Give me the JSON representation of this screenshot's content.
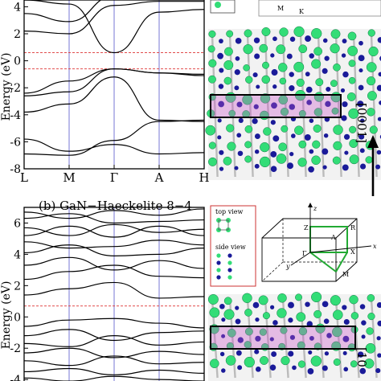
{
  "panel_b_caption": "(b) GaN−Haeckelite 8−4",
  "axis_label_energy": "Energy (eV)",
  "kpoints": [
    "L",
    "M",
    "Γ",
    "A",
    "H"
  ],
  "axis_ticks_top": [
    "4",
    "2",
    "0",
    "-2",
    "-4",
    "-6",
    "-8"
  ],
  "axis_ticks_bottom": [
    "6",
    "4",
    "2",
    "0",
    "-2",
    "-4"
  ],
  "direction_label": "[0001]",
  "direction_label_bottom": "[10",
  "top_view_label": "top view",
  "side_view_label": "side view",
  "bz_labels": [
    "Z",
    "R",
    "A",
    "X",
    "Γ",
    "y",
    "M",
    "x",
    "z"
  ],
  "bz_top_labels": [
    "M",
    "K"
  ],
  "colors": {
    "band_line": "#000000",
    "kpath_line": "#5555cc",
    "fermi_dashed": "#dd3333",
    "ga_atom": "#33dd77",
    "n_atom": "#1a1a99",
    "highlight_slab": "#cc55cc",
    "bz_highlight": "#22aa33"
  },
  "chart_data": [
    {
      "type": "line",
      "title": "",
      "xlabel": "",
      "ylabel": "Energy (eV)",
      "x_ticks": [
        "L",
        "M",
        "Γ",
        "A",
        "H"
      ],
      "ylim": [
        -8,
        4.5
      ],
      "reference_lines": [
        0.6,
        -0.6
      ],
      "series": [
        {
          "x": [
            0,
            1,
            2,
            3,
            4
          ],
          "values": [
            4.5,
            4.2,
            0.6,
            3.6,
            3.8
          ]
        },
        {
          "x": [
            0,
            1,
            2,
            3,
            4
          ],
          "values": [
            3.5,
            2.9,
            4.8,
            4.8,
            4.6
          ]
        },
        {
          "x": [
            0,
            1,
            2,
            3,
            4
          ],
          "values": [
            2.2,
            2.0,
            4.1,
            4.4,
            4.4
          ]
        },
        {
          "x": [
            0,
            1,
            2,
            3,
            4
          ],
          "values": [
            -2.4,
            -1.5,
            -0.6,
            -0.9,
            -1.0
          ]
        },
        {
          "x": [
            0,
            1,
            2,
            3,
            4
          ],
          "values": [
            -2.6,
            -2.3,
            -0.6,
            -0.9,
            -1.1
          ]
        },
        {
          "x": [
            0,
            1,
            2,
            3,
            4
          ],
          "values": [
            -3.8,
            -3.2,
            -1.2,
            -4.4,
            -4.5
          ]
        },
        {
          "x": [
            0,
            1,
            2,
            3,
            4
          ],
          "values": [
            -5.8,
            -6.7,
            -6.2,
            -6.9,
            -6.8
          ]
        },
        {
          "x": [
            0,
            1,
            2,
            3,
            4
          ],
          "values": [
            -6.9,
            -7.0,
            -5.9,
            -4.5,
            -4.4
          ]
        }
      ]
    },
    {
      "type": "line",
      "title": "",
      "xlabel": "",
      "ylabel": "Energy (eV)",
      "ylim": [
        -4.3,
        7
      ],
      "reference_lines": [
        0.7
      ],
      "series": [
        {
          "x": [
            0,
            1,
            2,
            3,
            4
          ],
          "values": [
            6.7,
            6.3,
            6.8,
            6.5,
            6.9
          ]
        },
        {
          "x": [
            0,
            1,
            2,
            3,
            4
          ],
          "values": [
            6.3,
            6.6,
            6.0,
            6.1,
            6.2
          ]
        },
        {
          "x": [
            0,
            1,
            2,
            3,
            4
          ],
          "values": [
            5.7,
            5.2,
            5.9,
            5.4,
            5.6
          ]
        },
        {
          "x": [
            0,
            1,
            2,
            3,
            4
          ],
          "values": [
            5.2,
            5.8,
            5.1,
            5.8,
            5.2
          ]
        },
        {
          "x": [
            0,
            1,
            2,
            3,
            4
          ],
          "values": [
            4.8,
            4.4,
            4.5,
            4.9,
            4.6
          ]
        },
        {
          "x": [
            0,
            1,
            2,
            3,
            4
          ],
          "values": [
            4.1,
            4.6,
            3.9,
            4.0,
            4.4
          ]
        },
        {
          "x": [
            0,
            1,
            2,
            3,
            4
          ],
          "values": [
            3.3,
            3.8,
            3.0,
            3.6,
            3.1
          ]
        },
        {
          "x": [
            0,
            1,
            2,
            3,
            4
          ],
          "values": [
            2.4,
            2.9,
            3.3,
            2.6,
            2.5
          ]
        },
        {
          "x": [
            0,
            1,
            2,
            3,
            4
          ],
          "values": [
            1.4,
            1.8,
            2.2,
            1.2,
            1.3
          ]
        },
        {
          "x": [
            0,
            1,
            2,
            3,
            4
          ],
          "values": [
            -0.6,
            -0.2,
            -0.1,
            -0.4,
            -0.7
          ]
        },
        {
          "x": [
            0,
            1,
            2,
            3,
            4
          ],
          "values": [
            -1.2,
            -0.8,
            -1.5,
            -1.0,
            -0.9
          ]
        },
        {
          "x": [
            0,
            1,
            2,
            3,
            4
          ],
          "values": [
            -1.7,
            -1.9,
            -1.2,
            -1.8,
            -1.6
          ]
        },
        {
          "x": [
            0,
            1,
            2,
            3,
            4
          ],
          "values": [
            -2.3,
            -2.0,
            -2.6,
            -2.2,
            -2.4
          ]
        },
        {
          "x": [
            0,
            1,
            2,
            3,
            4
          ],
          "values": [
            -2.8,
            -3.1,
            -2.5,
            -3.0,
            -2.9
          ]
        },
        {
          "x": [
            0,
            1,
            2,
            3,
            4
          ],
          "values": [
            -3.5,
            -3.3,
            -3.7,
            -3.4,
            -3.6
          ]
        },
        {
          "x": [
            0,
            1,
            2,
            3,
            4
          ],
          "values": [
            -3.9,
            -4.1,
            -3.8,
            -4.0,
            -4.1
          ]
        }
      ]
    }
  ]
}
